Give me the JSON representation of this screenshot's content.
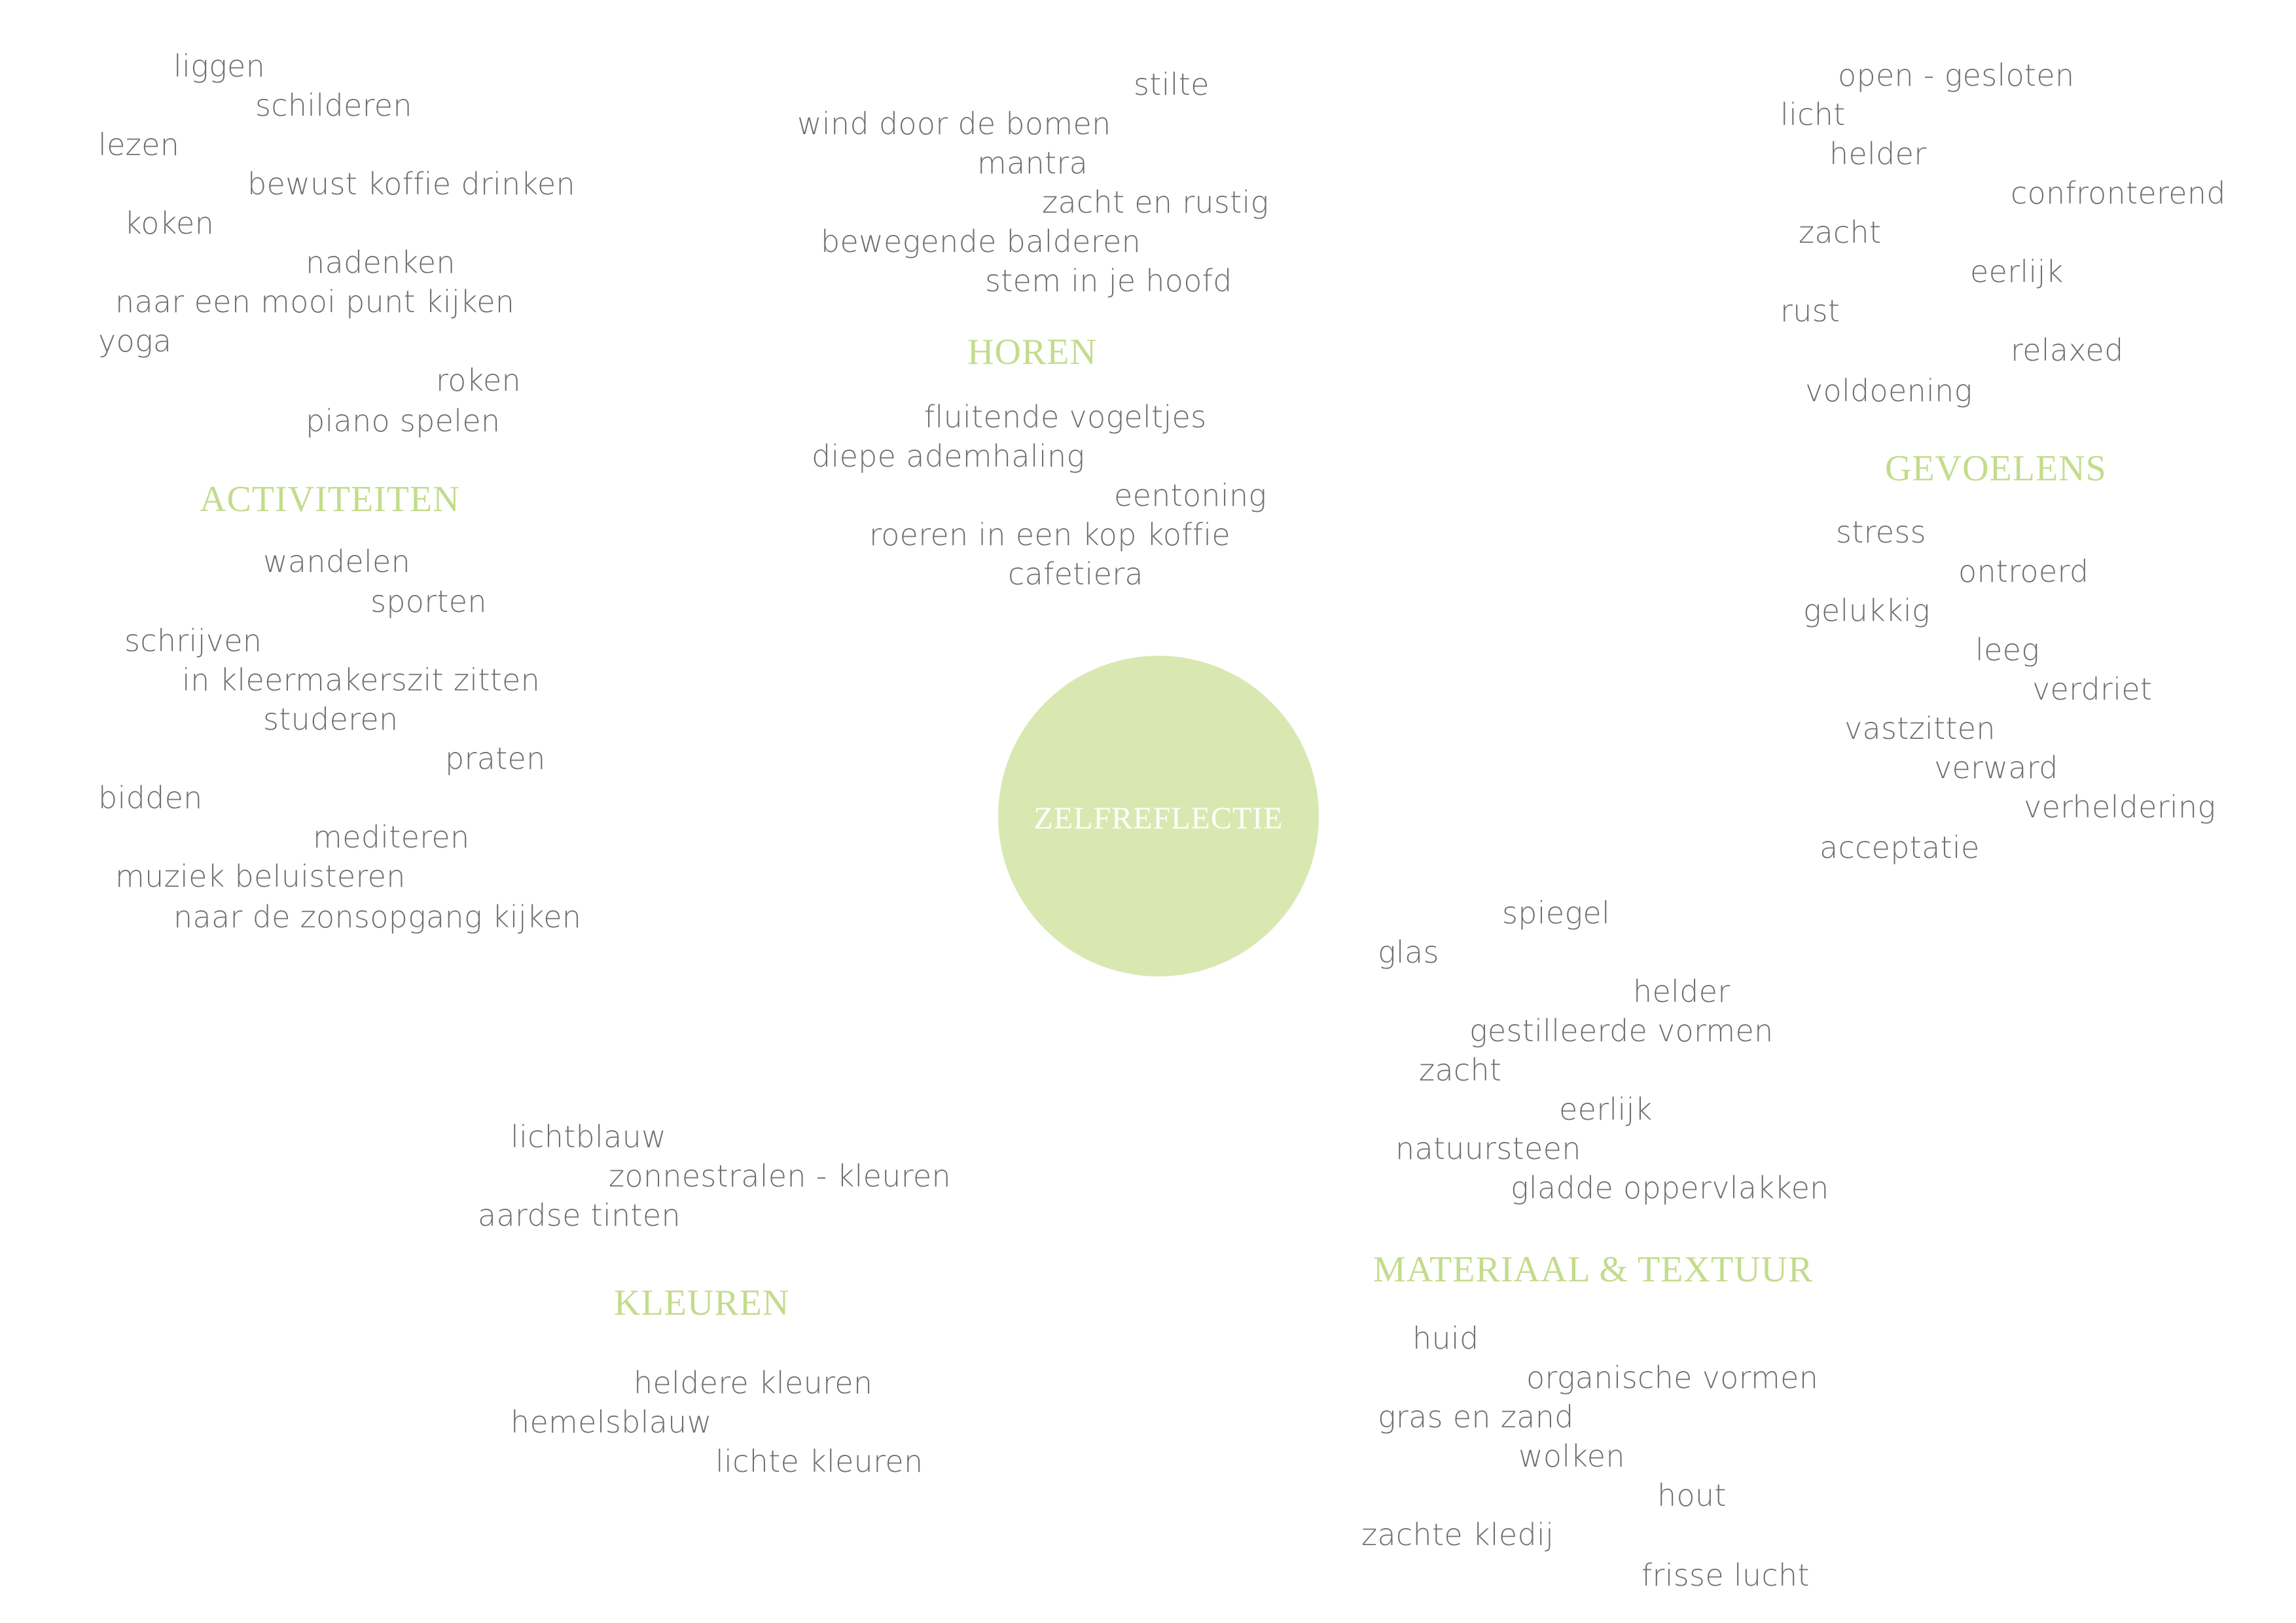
{
  "colors": {
    "accent": "#c3dc8c",
    "center_fill": "#d9e8b1",
    "word": "#6f6f6f",
    "center_text": "#ffffff"
  },
  "center": {
    "label": "ZELFREFLECTIE"
  },
  "clusters": [
    {
      "heading": "ACTIVITEITEN",
      "words": [
        "liggen",
        "schilderen",
        "lezen",
        "bewust koffie drinken",
        "koken",
        "nadenken",
        "naar een mooi punt kijken",
        "yoga",
        "roken",
        "piano spelen",
        "wandelen",
        "sporten",
        "schrijven",
        "in kleermakerszit zitten",
        "studeren",
        "praten",
        "bidden",
        "mediteren",
        "muziek beluisteren",
        "naar de zonsopgang kijken"
      ]
    },
    {
      "heading": "HOREN",
      "words": [
        "stilte",
        "wind door de bomen",
        "mantra",
        "zacht en rustig",
        "bewegende balderen",
        "stem in je hoofd",
        "fluitende vogeltjes",
        "diepe ademhaling",
        "eentoning",
        "roeren in een kop koffie",
        "cafetiera"
      ]
    },
    {
      "heading": "GEVOELENS",
      "words": [
        "open - gesloten",
        "licht",
        "helder",
        "confronterend",
        "zacht",
        "eerlijk",
        "rust",
        "relaxed",
        "voldoening",
        "stress",
        "ontroerd",
        "gelukkig",
        "leeg",
        "verdriet",
        "vastzitten",
        "verward",
        "verheldering",
        "acceptatie"
      ]
    },
    {
      "heading": "MATERIAAL & TEXTUUR",
      "words": [
        "spiegel",
        "glas",
        "helder",
        "gestilleerde vormen",
        "zacht",
        "eerlijk",
        "natuursteen",
        "gladde oppervlakken",
        "huid",
        "organische vormen",
        "gras en zand",
        "wolken",
        "hout",
        "zachte kledij",
        "frisse lucht"
      ]
    },
    {
      "heading": "KLEUREN",
      "words": [
        "lichtblauw",
        "zonnestralen - kleuren",
        "aardse tinten",
        "heldere kleuren",
        "hemelsblauw",
        "lichte kleuren"
      ]
    }
  ]
}
